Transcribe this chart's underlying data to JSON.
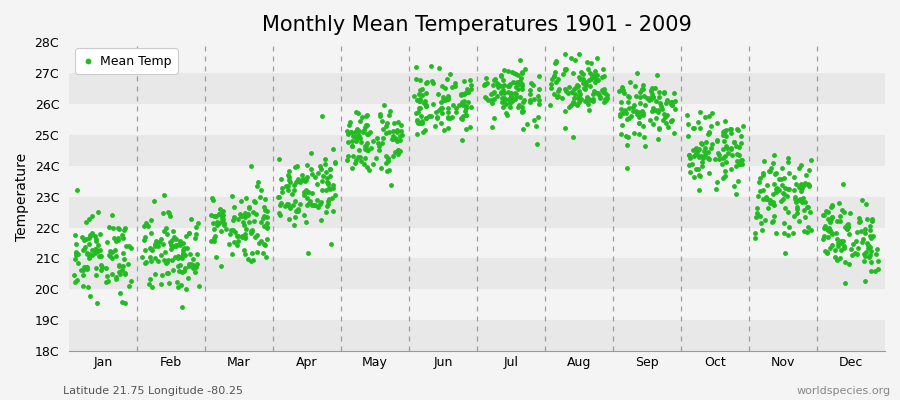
{
  "title": "Monthly Mean Temperatures 1901 - 2009",
  "ylabel": "Temperature",
  "subtitle": "Latitude 21.75 Longitude -80.25",
  "watermark": "worldspecies.org",
  "legend_label": "Mean Temp",
  "dot_color": "#22bb22",
  "bg_color": "#f4f4f4",
  "stripe_dark": "#e8e8e8",
  "stripe_light": "#f4f4f4",
  "years": 109,
  "months": [
    "Jan",
    "Feb",
    "Mar",
    "Apr",
    "May",
    "Jun",
    "Jul",
    "Aug",
    "Sep",
    "Oct",
    "Nov",
    "Dec"
  ],
  "mean_temps": [
    21.1,
    21.2,
    22.1,
    23.3,
    24.8,
    26.0,
    26.4,
    26.5,
    25.8,
    24.5,
    23.0,
    21.7
  ],
  "std_temps": [
    0.65,
    0.65,
    0.6,
    0.6,
    0.55,
    0.5,
    0.5,
    0.5,
    0.5,
    0.55,
    0.6,
    0.6
  ],
  "ylim_min": 18,
  "ylim_max": 28,
  "yticks": [
    18,
    19,
    20,
    21,
    22,
    23,
    24,
    25,
    26,
    27,
    28
  ],
  "marker_size": 3.5,
  "title_fontsize": 15,
  "axis_label_fontsize": 10,
  "tick_fontsize": 9,
  "subtitle_fontsize": 8,
  "watermark_fontsize": 8,
  "vline_color": "#666666",
  "vline_alpha": 0.6,
  "vline_lw": 0.9
}
